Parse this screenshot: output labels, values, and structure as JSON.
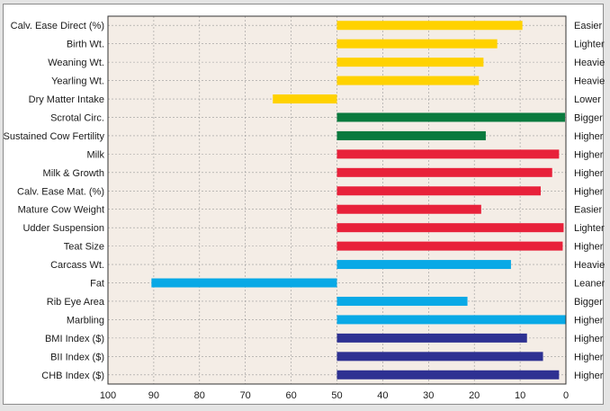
{
  "chart_data": {
    "type": "bar",
    "orientation": "horizontal",
    "grid": true,
    "xlim": [
      100,
      0
    ],
    "x_reversed": true,
    "baseline": 50,
    "x_ticks": [
      100,
      90,
      80,
      70,
      60,
      50,
      40,
      30,
      20,
      10,
      0
    ],
    "rows": [
      {
        "trait": "Calv. Ease Direct (%)",
        "value": 9.5,
        "direction": "Easier",
        "color": "#ffd200"
      },
      {
        "trait": "Birth Wt.",
        "value": 15,
        "direction": "Lighter",
        "color": "#ffd200"
      },
      {
        "trait": "Weaning Wt.",
        "value": 18,
        "direction": "Heavier",
        "color": "#ffd200"
      },
      {
        "trait": "Yearling Wt.",
        "value": 19,
        "direction": "Heavier",
        "color": "#ffd200"
      },
      {
        "trait": "Dry Matter Intake",
        "value": 64,
        "direction": "Lower",
        "color": "#ffd200"
      },
      {
        "trait": "Scrotal Circ.",
        "value": 0.2,
        "direction": "Bigger",
        "color": "#0a7a3e"
      },
      {
        "trait": "Sustained Cow Fertility",
        "value": 17.5,
        "direction": "Higher",
        "color": "#0a7a3e"
      },
      {
        "trait": "Milk",
        "value": 1.5,
        "direction": "Higher",
        "color": "#e8213a"
      },
      {
        "trait": "Milk & Growth",
        "value": 3,
        "direction": "Higher",
        "color": "#e8213a"
      },
      {
        "trait": "Calv. Ease Mat. (%)",
        "value": 5.5,
        "direction": "Higher",
        "color": "#e8213a"
      },
      {
        "trait": "Mature Cow Weight",
        "value": 18.5,
        "direction": "Easier",
        "color": "#e8213a"
      },
      {
        "trait": "Udder Suspension",
        "value": 0.5,
        "direction": "Lighter",
        "color": "#e8213a"
      },
      {
        "trait": "Teat Size",
        "value": 0.7,
        "direction": "Higher",
        "color": "#e8213a"
      },
      {
        "trait": "Carcass Wt.",
        "value": 12,
        "direction": "Heavier",
        "color": "#09a9e6"
      },
      {
        "trait": "Fat",
        "value": 90.5,
        "direction": "Leaner",
        "color": "#09a9e6"
      },
      {
        "trait": "Rib Eye Area",
        "value": 21.5,
        "direction": "Bigger",
        "color": "#09a9e6"
      },
      {
        "trait": "Marbling",
        "value": 0.1,
        "direction": "Higher",
        "color": "#09a9e6"
      },
      {
        "trait": "BMI Index ($)",
        "value": 8.5,
        "direction": "Higher",
        "color": "#2e3192"
      },
      {
        "trait": "BII Index ($)",
        "value": 5,
        "direction": "Higher",
        "color": "#2e3192"
      },
      {
        "trait": "CHB Index ($)",
        "value": 1.5,
        "direction": "Higher",
        "color": "#2e3192"
      }
    ]
  },
  "style": {
    "plot_background": "#f4ede6",
    "grid_color": "#9a9a9a",
    "axis_color": "#333333"
  }
}
